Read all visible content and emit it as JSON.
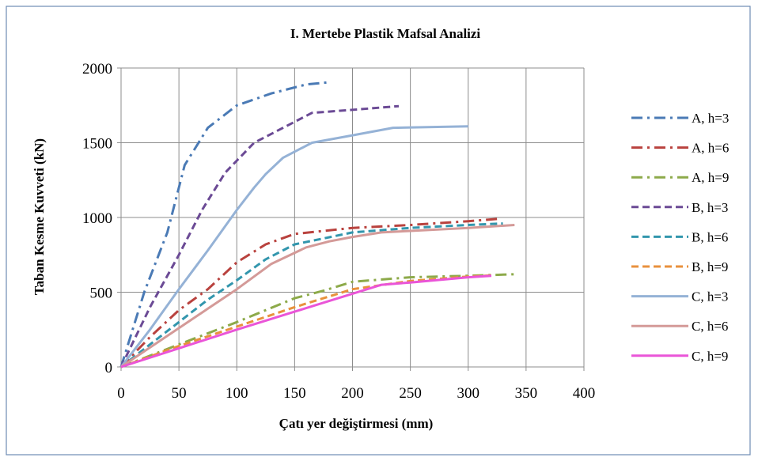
{
  "chart_data": {
    "type": "line",
    "title": "I. Mertebe Plastik Mafsal Analizi",
    "xlabel": "Çatı yer değiştirmesi (mm)",
    "ylabel": "Taban Kesme Kuvveti (kN)",
    "xlim": [
      0,
      400
    ],
    "ylim": [
      0,
      2000
    ],
    "xticks": [
      0,
      50,
      100,
      150,
      200,
      250,
      300,
      350,
      400
    ],
    "yticks": [
      0,
      500,
      1000,
      1500,
      2000
    ],
    "grid": true,
    "legend_position": "right",
    "series": [
      {
        "name": "A, h=3",
        "color": "#4a7ab5",
        "dash": "dashdot",
        "x": [
          0,
          20,
          40,
          55,
          75,
          100,
          130,
          160,
          180
        ],
        "y": [
          0,
          500,
          900,
          1350,
          1600,
          1750,
          1830,
          1890,
          1905
        ]
      },
      {
        "name": "A, h=6",
        "color": "#b9423e",
        "dash": "dashdot",
        "x": [
          0,
          25,
          50,
          75,
          100,
          125,
          150,
          200,
          250,
          300,
          325
        ],
        "y": [
          0,
          200,
          380,
          520,
          700,
          820,
          890,
          930,
          950,
          975,
          990
        ]
      },
      {
        "name": "A, h=9",
        "color": "#8daa4a",
        "dash": "dashdot",
        "x": [
          0,
          50,
          100,
          150,
          175,
          200,
          250,
          300,
          340
        ],
        "y": [
          0,
          150,
          300,
          460,
          510,
          570,
          600,
          610,
          620
        ]
      },
      {
        "name": "B, h=3",
        "color": "#6b4a95",
        "dash": "dash",
        "x": [
          0,
          25,
          50,
          70,
          90,
          115,
          140,
          165,
          200,
          240
        ],
        "y": [
          0,
          400,
          750,
          1050,
          1300,
          1500,
          1600,
          1700,
          1720,
          1745
        ]
      },
      {
        "name": "B, h=6",
        "color": "#3296ad",
        "dash": "dash",
        "x": [
          0,
          25,
          50,
          75,
          100,
          125,
          150,
          175,
          200,
          250,
          300,
          330
        ],
        "y": [
          0,
          150,
          300,
          450,
          580,
          720,
          820,
          860,
          900,
          930,
          950,
          960
        ]
      },
      {
        "name": "B, h=9",
        "color": "#e8913d",
        "dash": "dash",
        "x": [
          0,
          50,
          100,
          150,
          200,
          250,
          300,
          320
        ],
        "y": [
          0,
          140,
          270,
          400,
          520,
          575,
          605,
          612
        ]
      },
      {
        "name": "C, h=3",
        "color": "#95b2d6",
        "dash": "solid",
        "x": [
          0,
          25,
          50,
          75,
          100,
          115,
          125,
          140,
          165,
          200,
          235,
          300
        ],
        "y": [
          0,
          250,
          520,
          780,
          1050,
          1200,
          1290,
          1400,
          1500,
          1550,
          1600,
          1610
        ]
      },
      {
        "name": "C, h=6",
        "color": "#d49a98",
        "dash": "solid",
        "x": [
          0,
          25,
          50,
          75,
          100,
          130,
          160,
          180,
          200,
          225,
          250,
          300,
          340
        ],
        "y": [
          0,
          130,
          260,
          390,
          520,
          690,
          800,
          840,
          870,
          900,
          910,
          930,
          950
        ]
      },
      {
        "name": "C, h=9",
        "color": "#ea55d8",
        "dash": "solid",
        "x": [
          0,
          50,
          100,
          150,
          200,
          225,
          250,
          300,
          320
        ],
        "y": [
          0,
          125,
          250,
          370,
          490,
          550,
          565,
          600,
          610
        ]
      }
    ]
  }
}
